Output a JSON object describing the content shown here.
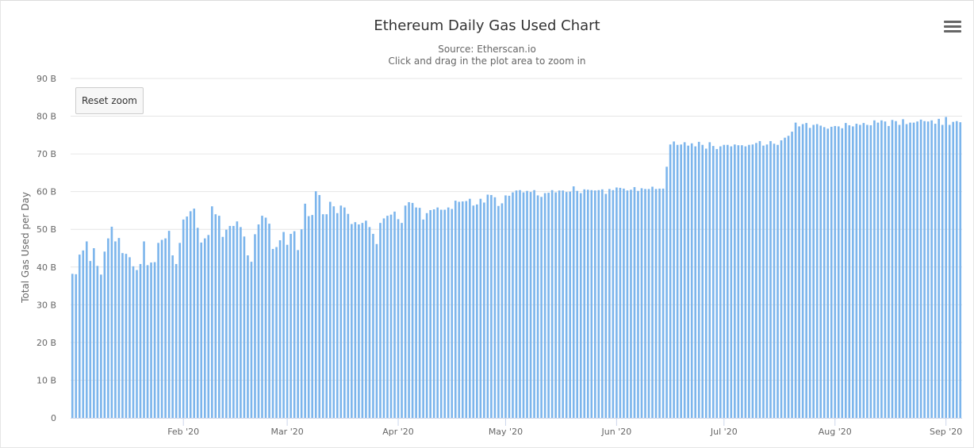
{
  "chart_data": {
    "type": "bar",
    "title": "Ethereum Daily Gas Used Chart",
    "subtitle_lines": [
      "Source: Etherscan.io",
      "Click and drag in the plot area to zoom in"
    ],
    "ylabel": "Total Gas Used per Day",
    "xlabel": "",
    "ylim": [
      0,
      90
    ],
    "y_unit": "B",
    "y_ticks": [
      "0",
      "10 B",
      "20 B",
      "30 B",
      "40 B",
      "50 B",
      "60 B",
      "70 B",
      "80 B",
      "90 B"
    ],
    "x_ticks": [
      "Feb '20",
      "Mar '20",
      "Apr '20",
      "May '20",
      "Jun '20",
      "Jul '20",
      "Aug '20",
      "Sep '20"
    ],
    "grid": true,
    "legend": "none",
    "bar_color": "#7cb5ec",
    "start_date": "2020-01-01",
    "series": [
      {
        "values": [
          38.2,
          38.1,
          43.3,
          44.4,
          46.8,
          41.6,
          45.0,
          40.3,
          38.0,
          44.1,
          47.6,
          50.7,
          46.8,
          47.7,
          43.7,
          43.5,
          42.6,
          40.2,
          39.2,
          40.8,
          46.8,
          40.5,
          41.2,
          41.3,
          46.4,
          47.2,
          47.6,
          49.6,
          43.1,
          40.8,
          46.4,
          52.6,
          53.4,
          54.8,
          55.5,
          50.4,
          46.5,
          47.6,
          48.5,
          56.1,
          54.0,
          53.6,
          48.0,
          49.9,
          50.9,
          50.9,
          52.1,
          50.6,
          48.1,
          43.1,
          41.4,
          48.7,
          51.3,
          53.6,
          53.1,
          51.5,
          44.8,
          45.3,
          47.1,
          49.3,
          45.9,
          48.8,
          49.5,
          44.5,
          50.0,
          56.8,
          53.5,
          53.8,
          60.1,
          59.1,
          54.0,
          54.0,
          57.3,
          56.1,
          54.3,
          56.3,
          55.8,
          54.1,
          51.4,
          51.9,
          51.3,
          51.7,
          52.3,
          50.6,
          48.8,
          46.1,
          51.7,
          52.9,
          53.6,
          53.9,
          54.7,
          52.7,
          51.7,
          56.3,
          57.2,
          57.0,
          55.8,
          55.7,
          52.6,
          54.3,
          55.1,
          55.3,
          55.8,
          55.2,
          55.2,
          55.8,
          55.4,
          57.6,
          57.3,
          57.4,
          57.5,
          58.1,
          56.3,
          56.6,
          58.1,
          57.1,
          59.2,
          59.1,
          58.5,
          56.2,
          56.9,
          59.0,
          58.9,
          59.8,
          60.3,
          60.4,
          59.8,
          60.2,
          59.9,
          60.4,
          59.0,
          58.6,
          59.6,
          59.7,
          60.4,
          59.8,
          60.3,
          60.3,
          59.9,
          60.0,
          61.4,
          60.2,
          59.6,
          60.6,
          60.5,
          60.4,
          60.3,
          60.4,
          60.6,
          59.4,
          60.7,
          60.4,
          61.1,
          61.0,
          60.8,
          60.3,
          60.5,
          61.2,
          60.2,
          60.9,
          60.7,
          60.7,
          61.3,
          60.7,
          60.8,
          60.8,
          66.6,
          72.5,
          73.3,
          72.4,
          72.5,
          73.1,
          72.2,
          72.8,
          72.0,
          73.2,
          72.4,
          71.4,
          73.1,
          72.1,
          71.3,
          72.0,
          72.4,
          72.4,
          72.0,
          72.5,
          72.3,
          72.3,
          72.0,
          72.4,
          72.5,
          72.9,
          73.4,
          72.2,
          72.5,
          73.4,
          72.7,
          72.4,
          73.6,
          74.3,
          74.8,
          75.9,
          78.3,
          77.3,
          77.9,
          78.2,
          76.9,
          77.7,
          77.9,
          77.5,
          77.1,
          76.7,
          77.2,
          77.4,
          77.3,
          76.8,
          78.2,
          77.6,
          77.3,
          78.0,
          77.7,
          78.2,
          77.7,
          77.6,
          78.9,
          78.3,
          78.9,
          78.6,
          77.4,
          79.0,
          78.7,
          77.7,
          79.2,
          77.9,
          78.3,
          78.3,
          78.6,
          79.1,
          78.7,
          78.6,
          78.9,
          78.0,
          79.3,
          77.7,
          79.8,
          77.7,
          78.5,
          78.7,
          78.4
        ]
      }
    ]
  },
  "toolbar": {
    "reset_zoom_label": "Reset zoom",
    "menu_icon": "hamburger-menu-icon"
  }
}
